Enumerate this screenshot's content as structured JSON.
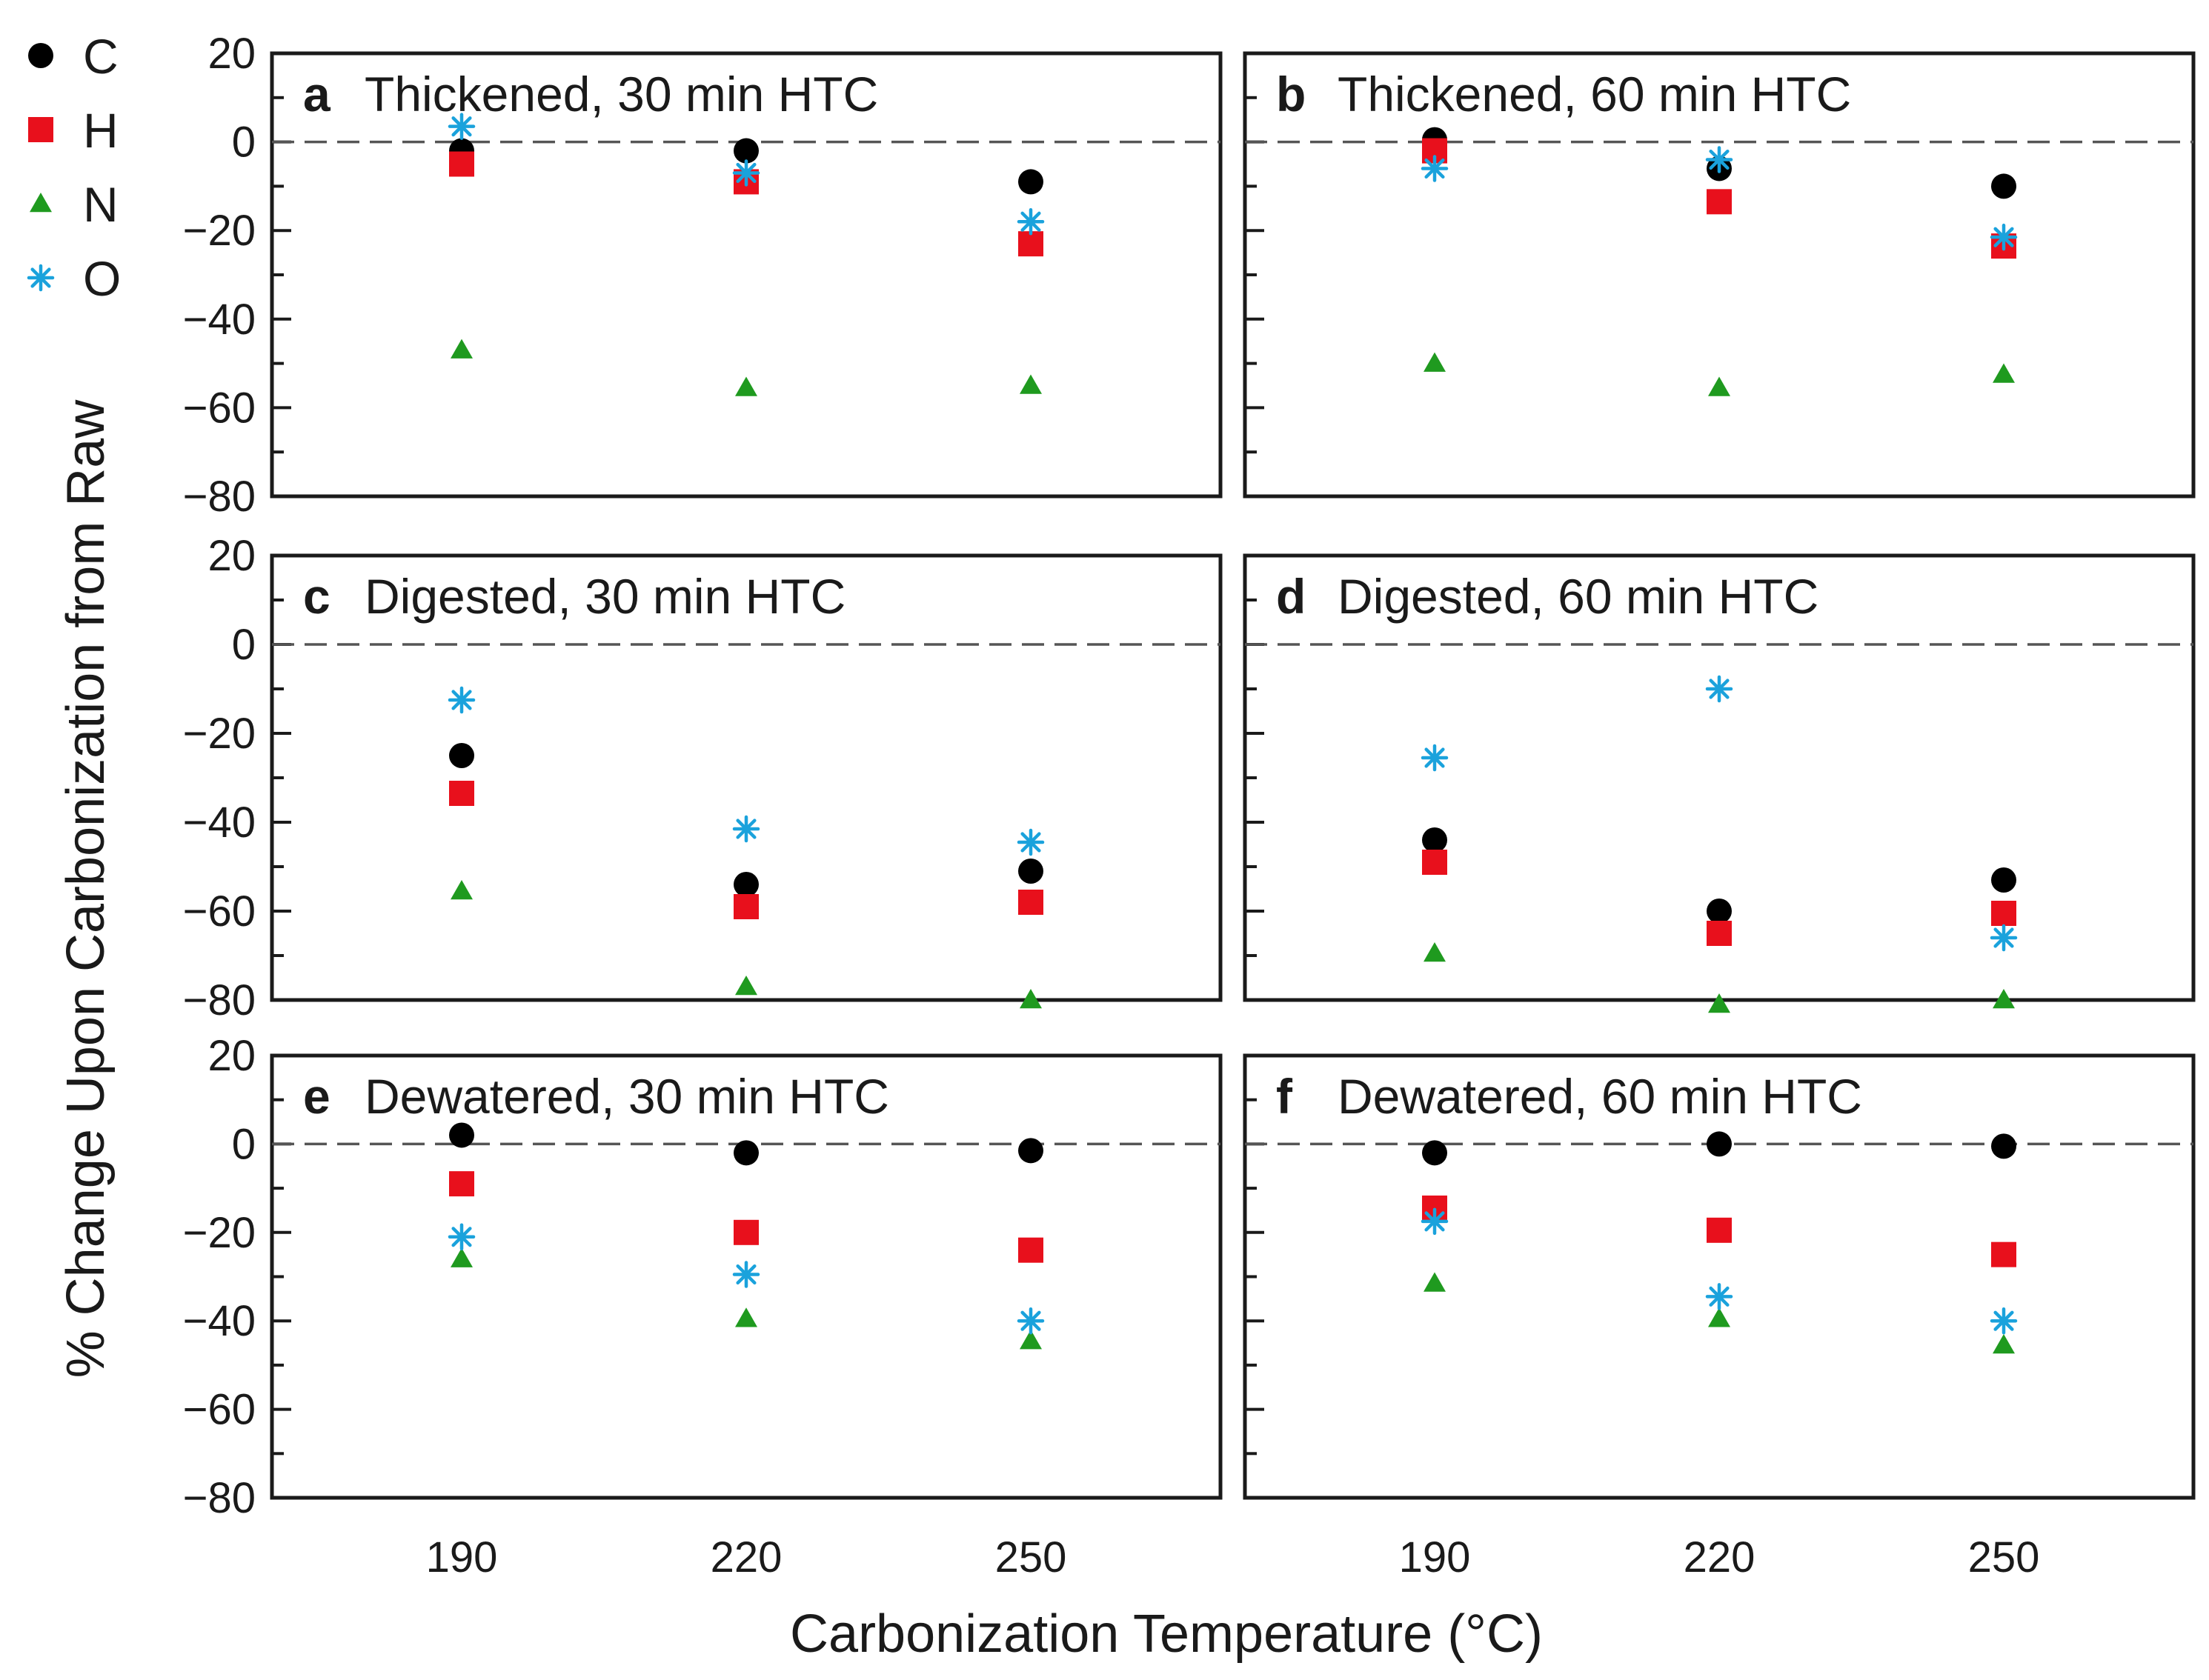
{
  "chart_data": {
    "type": "scatter",
    "xlabel": "Carbonization Temperature (°C)",
    "ylabel": "% Change Upon Carbonization from Raw",
    "categories": [
      "190",
      "220",
      "250"
    ],
    "ylim": [
      -80,
      20
    ],
    "yticks": [
      20,
      0,
      -20,
      -40,
      -60,
      -80
    ],
    "yticks_c_d": [
      20,
      0,
      -20,
      -40,
      -60,
      -80
    ],
    "reference_line": 0,
    "legend": {
      "placement": "top-left outside",
      "entries": [
        {
          "label": "C",
          "marker": "circle",
          "color": "#000000"
        },
        {
          "label": "H",
          "marker": "square",
          "color": "#e8101c"
        },
        {
          "label": "N",
          "marker": "triangle",
          "color": "#1f9a1f"
        },
        {
          "label": "O",
          "marker": "asterisk",
          "color": "#1aa2dc"
        }
      ]
    },
    "panels": [
      {
        "tag": "a",
        "title": "Thickened, 30 min HTC",
        "series": [
          {
            "name": "C",
            "values": [
              -2,
              -2,
              -9
            ]
          },
          {
            "name": "H",
            "values": [
              -5,
              -9,
              -23
            ]
          },
          {
            "name": "N",
            "values": [
              -47,
              -55.5,
              -55
            ]
          },
          {
            "name": "O",
            "values": [
              3.5,
              -7,
              -18
            ]
          }
        ]
      },
      {
        "tag": "b",
        "title": "Thickened, 60 min HTC",
        "series": [
          {
            "name": "C",
            "values": [
              0.5,
              -6,
              -10
            ]
          },
          {
            "name": "H",
            "values": [
              -2,
              -13.5,
              -23.5
            ]
          },
          {
            "name": "N",
            "values": [
              -50,
              -55.5,
              -52.5
            ]
          },
          {
            "name": "O",
            "values": [
              -6,
              -4,
              -21.5
            ]
          }
        ]
      },
      {
        "tag": "c",
        "title": "Digested, 30 min HTC",
        "series": [
          {
            "name": "C",
            "values": [
              -25,
              -54,
              -51
            ]
          },
          {
            "name": "H",
            "values": [
              -33.5,
              -59,
              -58
            ]
          },
          {
            "name": "N",
            "values": [
              -55.5,
              -77,
              -80
            ]
          },
          {
            "name": "O",
            "values": [
              -12.5,
              -41.5,
              -44.5
            ]
          }
        ]
      },
      {
        "tag": "d",
        "title": "Digested, 60 min HTC",
        "series": [
          {
            "name": "C",
            "values": [
              -44,
              -60,
              -53
            ]
          },
          {
            "name": "H",
            "values": [
              -49,
              -65,
              -60.5
            ]
          },
          {
            "name": "N",
            "values": [
              -69.5,
              -81,
              -80
            ]
          },
          {
            "name": "O",
            "values": [
              -25.5,
              -10,
              -66
            ]
          }
        ]
      },
      {
        "tag": "e",
        "title": "Dewatered, 30 min HTC",
        "series": [
          {
            "name": "C",
            "values": [
              2,
              -2,
              -1.5
            ]
          },
          {
            "name": "H",
            "values": [
              -9,
              -20,
              -24
            ]
          },
          {
            "name": "N",
            "values": [
              -26,
              -39.5,
              -44.5
            ]
          },
          {
            "name": "O",
            "values": [
              -21,
              -29.5,
              -40
            ]
          }
        ]
      },
      {
        "tag": "f",
        "title": "Dewatered, 60 min HTC",
        "series": [
          {
            "name": "C",
            "values": [
              -2,
              0,
              -0.5
            ]
          },
          {
            "name": "H",
            "values": [
              -14.5,
              -19.5,
              -25
            ]
          },
          {
            "name": "N",
            "values": [
              -31.5,
              -39.5,
              -45.5
            ]
          },
          {
            "name": "O",
            "values": [
              -17.5,
              -34.5,
              -40
            ]
          }
        ]
      }
    ]
  }
}
